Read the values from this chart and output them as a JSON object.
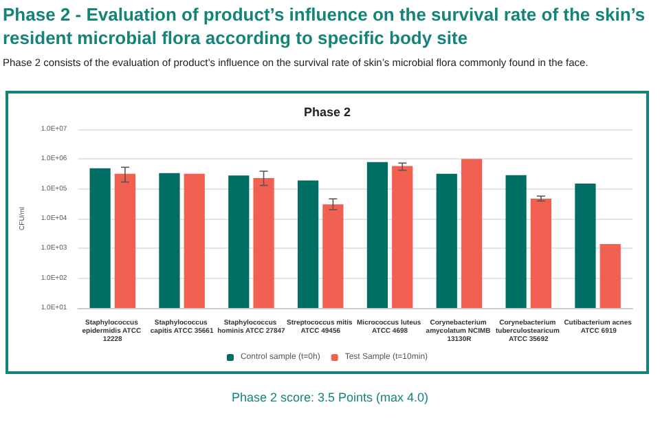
{
  "chart_data": {
    "type": "bar",
    "title": "Phase 2",
    "ylabel": "CFU/ml",
    "annotations": [
      "Phase 2 - Evaluation of product’s influence on the survival rate of the skin’s resident microbial flora according to specific body site",
      "Phase 2 consists of the evaluation of product’s influence on the survival rate of skin’s microbial flora commonly found in the face.",
      "Phase 2 score: 3.5 Points (max 4.0)"
    ],
    "categories": [
      "Staphylococcus epidermidis ATCC 12228",
      "Staphylococcus capitis ATCC 35661",
      "Staphylococcus hominis ATCC 27847",
      "Streptococcus mitis ATCC 49456",
      "Micrococcus luteus ATCC 4698",
      "Corynebacterium amycolatum NCIMB 13130R",
      "Corynebacterium tuberculostearicum ATCC 35692",
      "Cutibacterium acnes ATCC 6919"
    ],
    "series": [
      {
        "name": "Control sample (t=0h)",
        "color": "#006e63",
        "values": [
          490000,
          340000,
          280000,
          190000,
          790000,
          320000,
          290000,
          150000
        ]
      },
      {
        "name": "Test Sample (t=10min)",
        "color": "#f26052",
        "values": [
          320000,
          320000,
          230000,
          30000,
          580000,
          1000000,
          47000,
          1400
        ],
        "errors": [
          [
            170000,
            530000
          ],
          null,
          [
            130000,
            390000
          ],
          [
            20000,
            46000
          ],
          [
            420000,
            730000
          ],
          null,
          [
            39000,
            57000
          ],
          null
        ]
      }
    ],
    "log": true,
    "ylim": [
      10,
      10000000
    ],
    "yticks": [
      {
        "value": 10,
        "label": "1.0E+01"
      },
      {
        "value": 100,
        "label": "1.0E+02"
      },
      {
        "value": 1000,
        "label": "1.0E+03"
      },
      {
        "value": 10000,
        "label": "1.0E+04"
      },
      {
        "value": 100000,
        "label": "1.0E+05"
      },
      {
        "value": 1000000,
        "label": "1.0E+06"
      },
      {
        "value": 10000000,
        "label": "1.0E+07"
      }
    ],
    "grid": "y",
    "legend": "bottom"
  }
}
